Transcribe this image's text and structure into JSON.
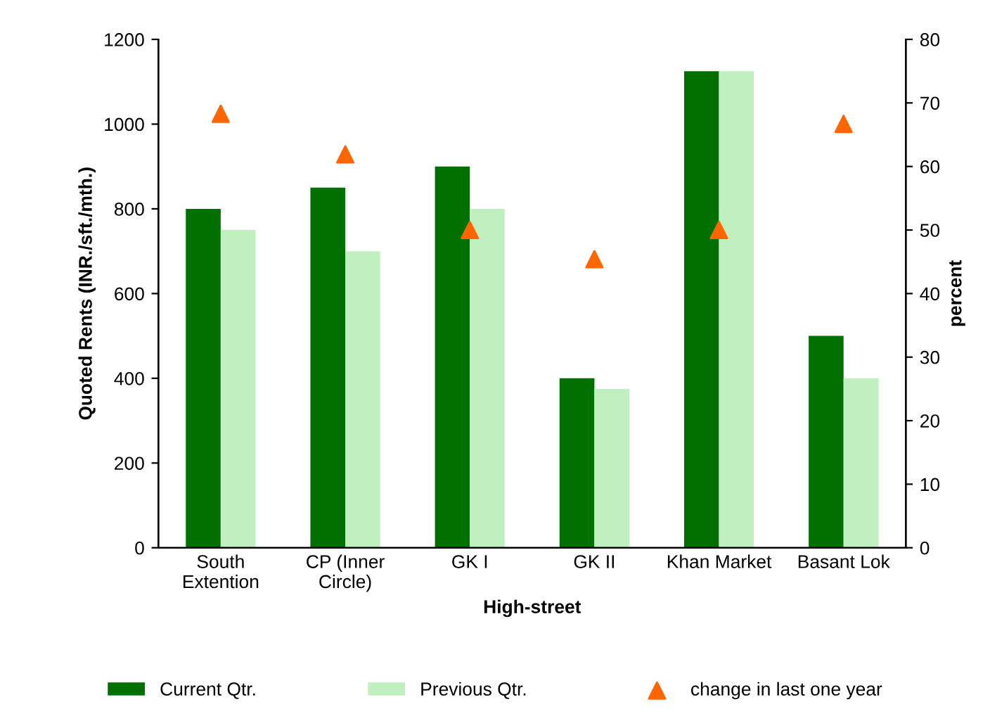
{
  "chart_data": {
    "type": "bar",
    "xlabel": "High-street",
    "ylabel": "Quoted Rents (INR./sft./mth.)",
    "y2label": "percent",
    "categories": [
      "South\nExtention",
      "CP (Inner\nCircle)",
      "GK I",
      "GK II",
      "Khan Market",
      "Basant Lok"
    ],
    "series": [
      {
        "name": "Current Qtr.",
        "color": "#007000",
        "values": [
          800,
          850,
          900,
          400,
          1125,
          500
        ]
      },
      {
        "name": "Previous Qtr.",
        "color": "#c0f0c0",
        "values": [
          750,
          700,
          800,
          375,
          1125,
          400
        ]
      },
      {
        "name": "change in last one year",
        "type": "scatter",
        "axis": "y2",
        "marker": "triangle",
        "color": "#ff6600",
        "values": [
          68.3,
          61.9,
          50,
          45.4,
          50,
          66.7
        ]
      }
    ],
    "ylim": [
      0,
      1200
    ],
    "yticks": [
      0,
      200,
      400,
      600,
      800,
      1000,
      1200
    ],
    "y2lim": [
      0,
      80
    ],
    "y2ticks": [
      0,
      10,
      20,
      30,
      40,
      50,
      60,
      70,
      80
    ],
    "grid": false,
    "legend": "bottom"
  }
}
